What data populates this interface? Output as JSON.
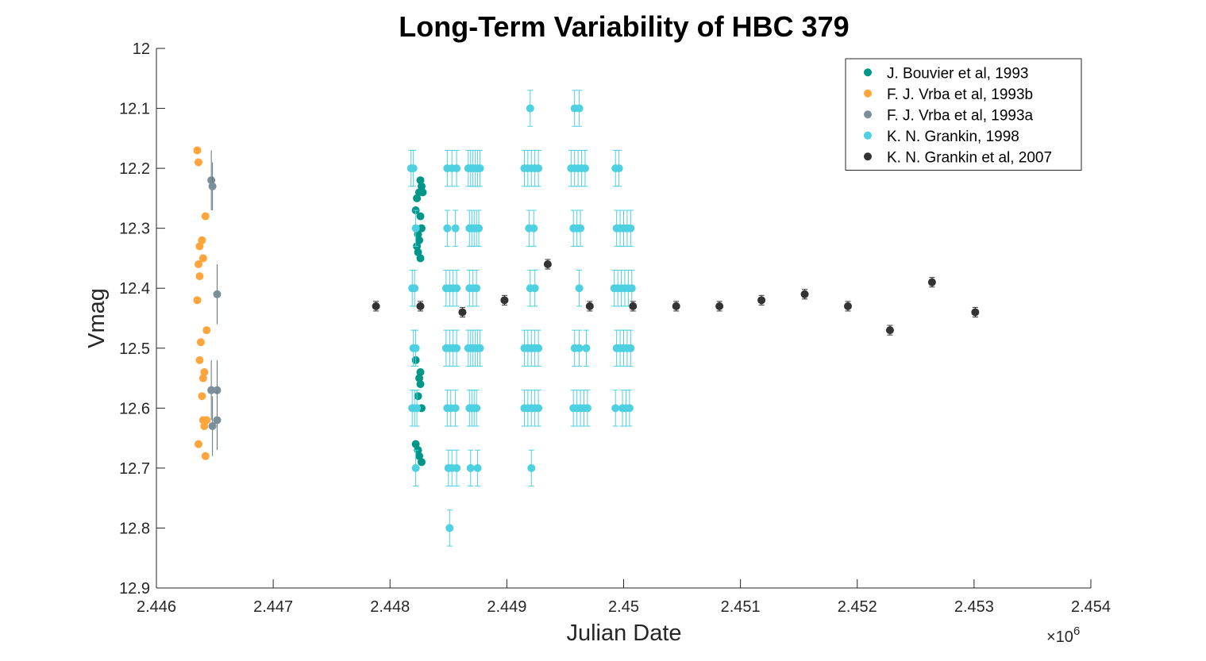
{
  "chart_data": {
    "type": "scatter",
    "title": "Long-Term Variability of HBC 379",
    "xlabel": "Julian Date",
    "ylabel": "Vmag",
    "x_exponent_label": "×10",
    "x_exponent_power": "6",
    "xlim": [
      2.446,
      2.454
    ],
    "ylim": [
      12.0,
      12.9
    ],
    "y_reversed": true,
    "x_ticks": [
      2.446,
      2.447,
      2.448,
      2.449,
      2.45,
      2.451,
      2.452,
      2.453,
      2.454
    ],
    "x_tick_labels": [
      "2.446",
      "2.447",
      "2.448",
      "2.449",
      "2.45",
      "2.451",
      "2.452",
      "2.453",
      "2.454"
    ],
    "y_ticks": [
      12.0,
      12.1,
      12.2,
      12.3,
      12.4,
      12.5,
      12.6,
      12.7,
      12.8,
      12.9
    ],
    "y_tick_labels": [
      "12",
      "12.1",
      "12.2",
      "12.3",
      "12.4",
      "12.5",
      "12.6",
      "12.7",
      "12.8",
      "12.9"
    ],
    "grid": false,
    "legend_position": "top-right",
    "series": [
      {
        "name": "J. Bouvier et al, 1993",
        "color": "#009688",
        "error_color": "#009688",
        "points": [
          [
            2.44826,
            12.22
          ],
          [
            2.44827,
            12.23
          ],
          [
            2.44825,
            12.24
          ],
          [
            2.44828,
            12.24
          ],
          [
            2.44823,
            12.25
          ],
          [
            2.44822,
            12.27
          ],
          [
            2.44826,
            12.28
          ],
          [
            2.44827,
            12.3
          ],
          [
            2.44824,
            12.31
          ],
          [
            2.44825,
            12.32
          ],
          [
            2.44823,
            12.33
          ],
          [
            2.44824,
            12.34
          ],
          [
            2.44826,
            12.35
          ],
          [
            2.44822,
            12.52
          ],
          [
            2.44826,
            12.54
          ],
          [
            2.44825,
            12.55
          ],
          [
            2.44826,
            12.56
          ],
          [
            2.44824,
            12.58
          ],
          [
            2.44827,
            12.6
          ],
          [
            2.44822,
            12.66
          ],
          [
            2.44824,
            12.67
          ],
          [
            2.44825,
            12.68
          ],
          [
            2.44827,
            12.69
          ]
        ]
      },
      {
        "name": "F. J. Vrba et al, 1993b",
        "color": "#FFA53C",
        "error_color": "#FFA53C",
        "points": [
          [
            2.44635,
            12.17
          ],
          [
            2.44636,
            12.19
          ],
          [
            2.44642,
            12.28
          ],
          [
            2.44639,
            12.32
          ],
          [
            2.44637,
            12.33
          ],
          [
            2.4464,
            12.35
          ],
          [
            2.44636,
            12.36
          ],
          [
            2.44637,
            12.38
          ],
          [
            2.44635,
            12.42
          ],
          [
            2.44643,
            12.47
          ],
          [
            2.44638,
            12.49
          ],
          [
            2.44637,
            12.52
          ],
          [
            2.44641,
            12.54
          ],
          [
            2.4464,
            12.55
          ],
          [
            2.44639,
            12.58
          ],
          [
            2.4464,
            12.62
          ],
          [
            2.44643,
            12.62
          ],
          [
            2.44641,
            12.63
          ],
          [
            2.44636,
            12.66
          ],
          [
            2.44642,
            12.68
          ]
        ]
      },
      {
        "name": "F. J. Vrba et al, 1993a",
        "color": "#7B8F9A",
        "error_color": "#5F7480",
        "points": [
          [
            2.44647,
            12.22,
            0.05
          ],
          [
            2.44648,
            12.23,
            0.04
          ],
          [
            2.44652,
            12.41,
            0.05
          ],
          [
            2.44647,
            12.57,
            0.05
          ],
          [
            2.44652,
            12.57,
            0.05
          ],
          [
            2.44648,
            12.63,
            0.05
          ],
          [
            2.44652,
            12.62,
            0.05
          ]
        ]
      },
      {
        "name": "K. N. Grankin, 1998",
        "color": "#4DD0E1",
        "error_color": "#4DD0E1",
        "error": 0.03,
        "points": [
          [
            2.44818,
            12.2
          ],
          [
            2.4482,
            12.2
          ],
          [
            2.44822,
            12.3
          ],
          [
            2.44819,
            12.4
          ],
          [
            2.44821,
            12.4
          ],
          [
            2.4482,
            12.5
          ],
          [
            2.44822,
            12.5
          ],
          [
            2.44819,
            12.6
          ],
          [
            2.44821,
            12.6
          ],
          [
            2.44823,
            12.6
          ],
          [
            2.44822,
            12.7
          ],
          [
            2.44849,
            12.2
          ],
          [
            2.44853,
            12.2
          ],
          [
            2.44857,
            12.2
          ],
          [
            2.44849,
            12.3
          ],
          [
            2.44856,
            12.3
          ],
          [
            2.44848,
            12.4
          ],
          [
            2.44851,
            12.4
          ],
          [
            2.44854,
            12.4
          ],
          [
            2.44857,
            12.4
          ],
          [
            2.44848,
            12.5
          ],
          [
            2.44851,
            12.5
          ],
          [
            2.44854,
            12.5
          ],
          [
            2.44857,
            12.5
          ],
          [
            2.44849,
            12.6
          ],
          [
            2.44852,
            12.6
          ],
          [
            2.44856,
            12.6
          ],
          [
            2.4485,
            12.7
          ],
          [
            2.44853,
            12.7
          ],
          [
            2.44857,
            12.7
          ],
          [
            2.44851,
            12.8
          ],
          [
            2.44867,
            12.2
          ],
          [
            2.44869,
            12.2
          ],
          [
            2.44871,
            12.2
          ],
          [
            2.44873,
            12.2
          ],
          [
            2.44875,
            12.2
          ],
          [
            2.44877,
            12.2
          ],
          [
            2.44868,
            12.3
          ],
          [
            2.4487,
            12.3
          ],
          [
            2.44872,
            12.3
          ],
          [
            2.44874,
            12.3
          ],
          [
            2.44876,
            12.3
          ],
          [
            2.44868,
            12.4
          ],
          [
            2.44871,
            12.4
          ],
          [
            2.44874,
            12.4
          ],
          [
            2.44867,
            12.5
          ],
          [
            2.44869,
            12.5
          ],
          [
            2.44871,
            12.5
          ],
          [
            2.44873,
            12.5
          ],
          [
            2.44875,
            12.5
          ],
          [
            2.44877,
            12.5
          ],
          [
            2.44868,
            12.6
          ],
          [
            2.4487,
            12.6
          ],
          [
            2.44872,
            12.6
          ],
          [
            2.44874,
            12.6
          ],
          [
            2.44869,
            12.7
          ],
          [
            2.44875,
            12.7
          ],
          [
            2.4492,
            12.1
          ],
          [
            2.44915,
            12.2
          ],
          [
            2.44918,
            12.2
          ],
          [
            2.44921,
            12.2
          ],
          [
            2.44924,
            12.2
          ],
          [
            2.44927,
            12.2
          ],
          [
            2.44919,
            12.3
          ],
          [
            2.44923,
            12.3
          ],
          [
            2.4492,
            12.4
          ],
          [
            2.44924,
            12.4
          ],
          [
            2.44915,
            12.5
          ],
          [
            2.44918,
            12.5
          ],
          [
            2.44921,
            12.5
          ],
          [
            2.44924,
            12.5
          ],
          [
            2.44927,
            12.5
          ],
          [
            2.44915,
            12.6
          ],
          [
            2.44918,
            12.6
          ],
          [
            2.44921,
            12.6
          ],
          [
            2.44924,
            12.6
          ],
          [
            2.44927,
            12.6
          ],
          [
            2.44921,
            12.7
          ],
          [
            2.44958,
            12.1
          ],
          [
            2.44962,
            12.1
          ],
          [
            2.44955,
            12.2
          ],
          [
            2.44958,
            12.2
          ],
          [
            2.44961,
            12.2
          ],
          [
            2.44964,
            12.2
          ],
          [
            2.44967,
            12.2
          ],
          [
            2.44957,
            12.3
          ],
          [
            2.4496,
            12.3
          ],
          [
            2.44963,
            12.3
          ],
          [
            2.44962,
            12.4
          ],
          [
            2.44958,
            12.5
          ],
          [
            2.44962,
            12.5
          ],
          [
            2.44968,
            12.5
          ],
          [
            2.44957,
            12.6
          ],
          [
            2.4496,
            12.6
          ],
          [
            2.44963,
            12.6
          ],
          [
            2.44966,
            12.6
          ],
          [
            2.44969,
            12.6
          ],
          [
            2.44993,
            12.2
          ],
          [
            2.44996,
            12.2
          ],
          [
            2.44994,
            12.3
          ],
          [
            2.44997,
            12.3
          ],
          [
            2.45,
            12.3
          ],
          [
            2.45003,
            12.3
          ],
          [
            2.45006,
            12.3
          ],
          [
            2.44992,
            12.4
          ],
          [
            2.44995,
            12.4
          ],
          [
            2.44998,
            12.4
          ],
          [
            2.45001,
            12.4
          ],
          [
            2.45004,
            12.4
          ],
          [
            2.45007,
            12.4
          ],
          [
            2.44994,
            12.5
          ],
          [
            2.44997,
            12.5
          ],
          [
            2.45,
            12.5
          ],
          [
            2.45003,
            12.5
          ],
          [
            2.45006,
            12.5
          ],
          [
            2.44993,
            12.6
          ],
          [
            2.44999,
            12.6
          ],
          [
            2.45002,
            12.6
          ],
          [
            2.45005,
            12.6
          ]
        ]
      },
      {
        "name": "K. N. Grankin et al, 2007",
        "color": "#333333",
        "error_color": "#333333",
        "error": 0.008,
        "points": [
          [
            2.44788,
            12.43
          ],
          [
            2.44826,
            12.43
          ],
          [
            2.44862,
            12.44
          ],
          [
            2.44898,
            12.42
          ],
          [
            2.44935,
            12.36
          ],
          [
            2.44971,
            12.43
          ],
          [
            2.45008,
            12.43
          ],
          [
            2.45045,
            12.43
          ],
          [
            2.45082,
            12.43
          ],
          [
            2.45118,
            12.42
          ],
          [
            2.45155,
            12.41
          ],
          [
            2.45192,
            12.43
          ],
          [
            2.45228,
            12.47
          ],
          [
            2.45264,
            12.39
          ],
          [
            2.45301,
            12.44
          ]
        ]
      }
    ]
  }
}
